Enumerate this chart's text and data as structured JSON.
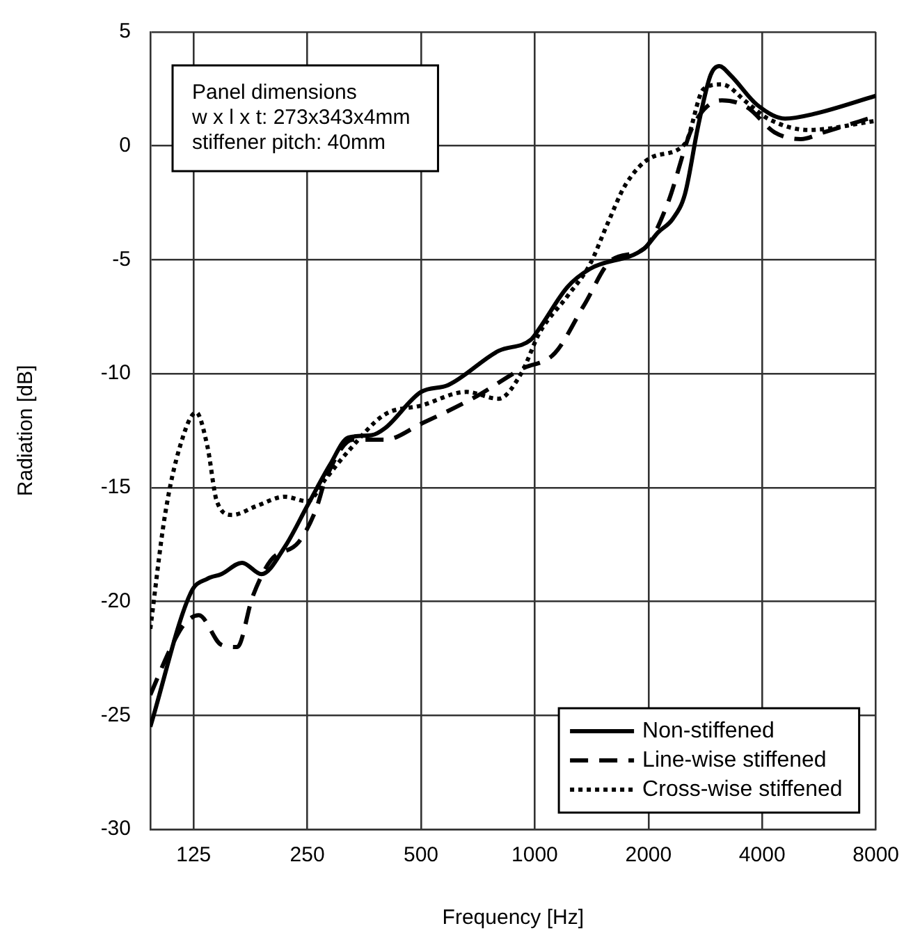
{
  "chart_data": {
    "type": "line",
    "xlabel": "Frequency [Hz]",
    "ylabel": "Radiation [dB]",
    "log": "x",
    "xlim": [
      96,
      8000
    ],
    "xticks": [
      125,
      250,
      500,
      1000,
      2000,
      4000,
      8000
    ],
    "ylim": [
      -30,
      5
    ],
    "yticks": [
      -30,
      -25,
      -20,
      -15,
      -10,
      -5,
      0,
      5
    ],
    "grid": true,
    "legend": "bottom right",
    "marker": "none",
    "annotations": [
      "Panel dimensions",
      "w x l x t: 273x343x4mm",
      "stiffener pitch: 40mm"
    ],
    "series": [
      {
        "name": "Non-stiffened",
        "color": "#000000",
        "line_style": "solid",
        "x": [
          96,
          123,
          136,
          148,
          168,
          189,
          218,
          250,
          287,
          321,
          370,
          401,
          500,
          590,
          802,
          978,
          1030,
          1220,
          1400,
          1950,
          2120,
          2320,
          2500,
          2710,
          2920,
          3080,
          3300,
          3880,
          4600,
          5470,
          8000
        ],
        "values": [
          -25.5,
          -19.6,
          -19.0,
          -18.8,
          -18.3,
          -18.8,
          -17.6,
          -15.8,
          -14.0,
          -12.8,
          -12.7,
          -12.4,
          -10.8,
          -10.5,
          -9.0,
          -8.5,
          -8.0,
          -6.2,
          -5.4,
          -4.5,
          -3.8,
          -3.2,
          -2.1,
          0.9,
          3.1,
          3.5,
          3.1,
          1.8,
          1.2,
          1.4,
          2.2
        ]
      },
      {
        "name": "Line-wise stiffened",
        "color": "#000000",
        "line_style": "dashed",
        "x": [
          96,
          109,
          118,
          129,
          148,
          163,
          179,
          200,
          237,
          263,
          280,
          330,
          401,
          500,
          700,
          920,
          1130,
          1350,
          1600,
          1950,
          2240,
          2630,
          3130,
          3650,
          4310,
          5060,
          5830,
          8000
        ],
        "values": [
          -24.1,
          -22.0,
          -21.0,
          -20.6,
          -21.9,
          -22.0,
          -19.8,
          -18.2,
          -17.4,
          -16.0,
          -14.6,
          -12.9,
          -12.9,
          -12.2,
          -11.0,
          -9.8,
          -9.1,
          -7.0,
          -5.0,
          -4.5,
          -2.6,
          0.9,
          2.0,
          1.7,
          0.6,
          0.3,
          0.6,
          1.3
        ]
      },
      {
        "name": "Cross-wise stiffened",
        "color": "#000000",
        "line_style": "dotted",
        "x": [
          96,
          105,
          115,
          127,
          136,
          144,
          158,
          184,
          218,
          250,
          280,
          321,
          400,
          500,
          660,
          802,
          920,
          1030,
          1220,
          1400,
          1560,
          1740,
          2040,
          2500,
          2800,
          3130,
          3650,
          4140,
          5310,
          8000
        ],
        "values": [
          -21.2,
          -16.2,
          -13.2,
          -11.7,
          -13.2,
          -15.6,
          -16.2,
          -15.8,
          -15.4,
          -15.6,
          -14.6,
          -13.4,
          -11.8,
          -11.4,
          -10.8,
          -11.1,
          -10.0,
          -8.2,
          -6.6,
          -5.2,
          -3.4,
          -1.7,
          -0.5,
          0.1,
          2.5,
          2.7,
          1.9,
          1.2,
          0.7,
          1.1
        ]
      }
    ]
  }
}
